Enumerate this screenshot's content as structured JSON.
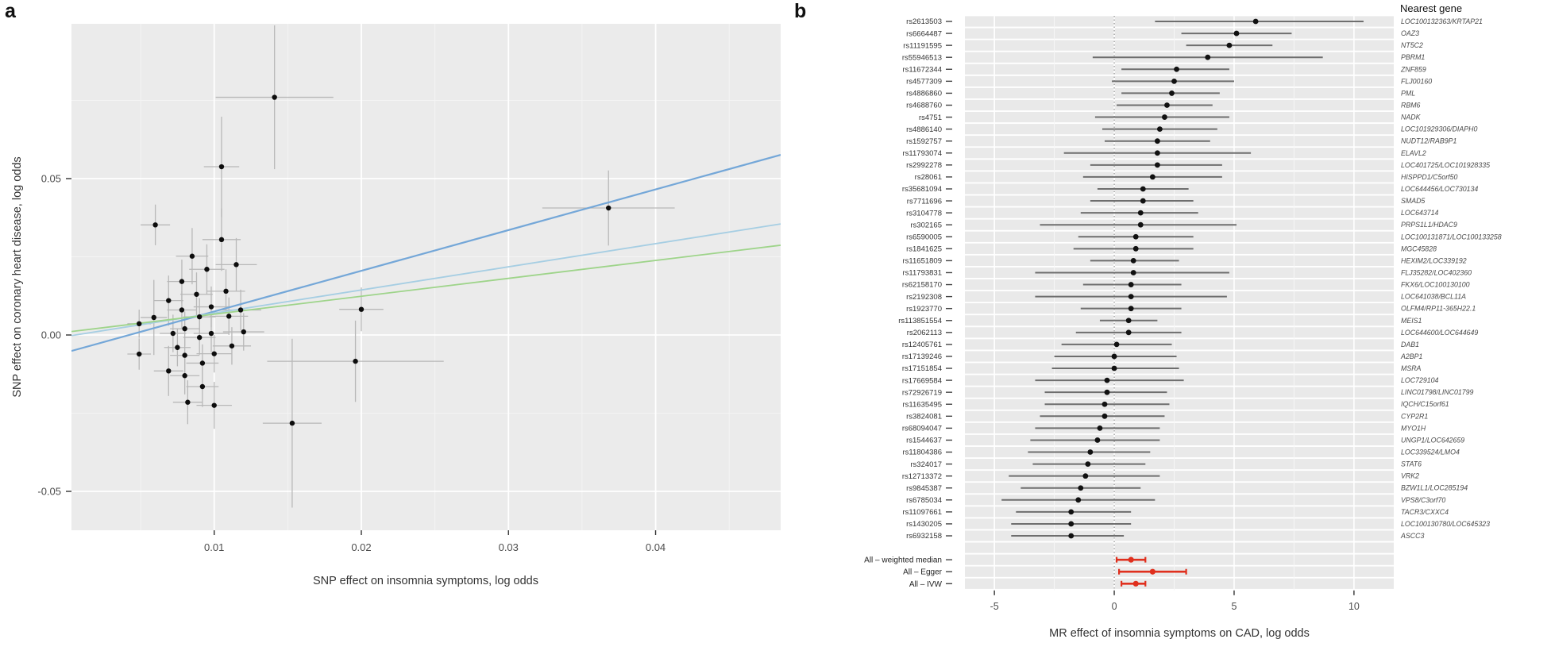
{
  "chart_data": [
    {
      "id": "panel_a",
      "type": "scatter",
      "panel_label": "a",
      "xlabel": "SNP effect on insomnia symptoms, log odds",
      "ylabel": "SNP effect on coronary heart disease, log odds",
      "x_ticks": [
        0.01,
        0.02,
        0.03,
        0.04
      ],
      "x_tick_labels": [
        "0.01",
        "0.02",
        "0.03",
        "0.04"
      ],
      "x_minor_ticks": [
        0.005,
        0.015,
        0.025,
        0.035,
        0.045
      ],
      "y_ticks": [
        0.05,
        0.0,
        -0.05
      ],
      "y_tick_labels": [
        "0.05",
        "0.00",
        "-0.05"
      ],
      "y_minor_ticks": [
        0.075,
        0.025,
        -0.025
      ],
      "xlim": [
        0.0003,
        0.0485
      ],
      "ylim": [
        -0.0624,
        0.0995
      ],
      "grid": true,
      "background": "#ebebeb",
      "point_color": "#0d0d0d",
      "errorbar_color": "#b8b8b8",
      "points": [
        [
          0.0049,
          0.0036,
          0.0008,
          0.0045
        ],
        [
          0.0049,
          -0.0061,
          0.0008,
          0.005
        ],
        [
          0.0059,
          0.0056,
          0.0009,
          0.012
        ],
        [
          0.006,
          0.0352,
          0.001,
          0.0065
        ],
        [
          0.0069,
          0.011,
          0.001,
          0.008
        ],
        [
          0.0069,
          -0.0115,
          0.001,
          0.008
        ],
        [
          0.0072,
          0.0005,
          0.0009,
          0.006
        ],
        [
          0.0075,
          -0.004,
          0.0009,
          0.006
        ],
        [
          0.0078,
          0.0171,
          0.001,
          0.007
        ],
        [
          0.0078,
          0.008,
          0.001,
          0.006
        ],
        [
          0.008,
          0.002,
          0.001,
          0.0055
        ],
        [
          0.008,
          -0.0065,
          0.001,
          0.0055
        ],
        [
          0.008,
          -0.013,
          0.001,
          0.006
        ],
        [
          0.0082,
          -0.0215,
          0.001,
          0.007
        ],
        [
          0.0085,
          0.0252,
          0.0011,
          0.009
        ],
        [
          0.0088,
          0.013,
          0.0011,
          0.007
        ],
        [
          0.009,
          0.0058,
          0.0011,
          0.006
        ],
        [
          0.009,
          -0.0008,
          0.0011,
          0.0055
        ],
        [
          0.0092,
          -0.009,
          0.0011,
          0.006
        ],
        [
          0.0092,
          -0.0165,
          0.0011,
          0.0065
        ],
        [
          0.0095,
          0.021,
          0.0012,
          0.008
        ],
        [
          0.0098,
          0.009,
          0.0012,
          0.0065
        ],
        [
          0.0098,
          0.0005,
          0.0012,
          0.006
        ],
        [
          0.01,
          -0.006,
          0.0012,
          0.006
        ],
        [
          0.01,
          -0.0225,
          0.0012,
          0.0075
        ],
        [
          0.0105,
          0.0538,
          0.0012,
          0.016
        ],
        [
          0.0105,
          0.0305,
          0.0013,
          0.01
        ],
        [
          0.0108,
          0.014,
          0.0013,
          0.007
        ],
        [
          0.011,
          0.006,
          0.0013,
          0.006
        ],
        [
          0.0112,
          -0.0035,
          0.0013,
          0.006
        ],
        [
          0.0115,
          0.0225,
          0.0014,
          0.0085
        ],
        [
          0.0118,
          0.008,
          0.0014,
          0.0065
        ],
        [
          0.012,
          0.001,
          0.0014,
          0.006
        ],
        [
          0.0141,
          0.076,
          0.004,
          0.023
        ],
        [
          0.0153,
          -0.0282,
          0.002,
          0.027
        ],
        [
          0.0196,
          -0.0084,
          0.006,
          0.013
        ],
        [
          0.02,
          0.0082,
          0.0015,
          0.007
        ],
        [
          0.0368,
          0.0406,
          0.0045,
          0.012
        ]
      ],
      "lines": [
        {
          "name": "fit-line-1",
          "color": "#74a7d8",
          "width": 2.2,
          "x0": 0.0003,
          "y0": -0.0051,
          "x1": 0.0485,
          "y1": 0.0576
        },
        {
          "name": "fit-line-2",
          "color": "#a6cee3",
          "width": 1.8,
          "x0": 0.0003,
          "y0": -0.0002,
          "x1": 0.0485,
          "y1": 0.0355
        },
        {
          "name": "fit-line-3",
          "color": "#9ed48a",
          "width": 1.8,
          "x0": 0.0003,
          "y0": 0.0011,
          "x1": 0.0485,
          "y1": 0.0287
        }
      ]
    },
    {
      "id": "panel_b",
      "type": "forest",
      "panel_label": "b",
      "right_header": "Nearest gene",
      "xlabel": "MR effect of insomnia symptoms on CAD, log odds",
      "x_ticks": [
        -5,
        0,
        5,
        10
      ],
      "x_tick_labels": [
        "-5",
        "0",
        "5",
        "10"
      ],
      "x_minor_ticks": [
        -2.5,
        2.5,
        7.5
      ],
      "xlim": [
        -6.23,
        11.66
      ],
      "zero_line": 0,
      "band_color": "#e9e9e9",
      "bar_color": "#6e6e6e",
      "dot_color": "#111111",
      "summary_color": "#e0301e",
      "rows": [
        {
          "snp": "rs2613503",
          "gene": "LOC100132363/KRTAP21",
          "est": 5.9,
          "lo": 1.7,
          "hi": 10.4
        },
        {
          "snp": "rs6664487",
          "gene": "OAZ3",
          "est": 5.1,
          "lo": 2.8,
          "hi": 7.4
        },
        {
          "snp": "rs11191595",
          "gene": "NT5C2",
          "est": 4.8,
          "lo": 3.0,
          "hi": 6.6
        },
        {
          "snp": "rs55946513",
          "gene": "PBRM1",
          "est": 3.9,
          "lo": -0.9,
          "hi": 8.7
        },
        {
          "snp": "rs11672344",
          "gene": "ZNF859",
          "est": 2.6,
          "lo": 0.3,
          "hi": 4.8
        },
        {
          "snp": "rs4577309",
          "gene": "FLJ00160",
          "est": 2.5,
          "lo": -0.1,
          "hi": 5.0
        },
        {
          "snp": "rs4886860",
          "gene": "PML",
          "est": 2.4,
          "lo": 0.3,
          "hi": 4.4
        },
        {
          "snp": "rs4688760",
          "gene": "RBM6",
          "est": 2.2,
          "lo": 0.1,
          "hi": 4.1
        },
        {
          "snp": "rs4751",
          "gene": "NADK",
          "est": 2.1,
          "lo": -0.8,
          "hi": 4.8
        },
        {
          "snp": "rs4886140",
          "gene": "LOC101929306/DIAPH0",
          "est": 1.9,
          "lo": -0.5,
          "hi": 4.3
        },
        {
          "snp": "rs1592757",
          "gene": "NUDT12/RAB9P1",
          "est": 1.8,
          "lo": -0.4,
          "hi": 4.0
        },
        {
          "snp": "rs11793074",
          "gene": "ELAVL2",
          "est": 1.8,
          "lo": -2.1,
          "hi": 5.7
        },
        {
          "snp": "rs2992278",
          "gene": "LOC401725/LOC101928335",
          "est": 1.8,
          "lo": -1.0,
          "hi": 4.5
        },
        {
          "snp": "rs28061",
          "gene": "HISPPD1/C5orf50",
          "est": 1.6,
          "lo": -1.3,
          "hi": 4.5
        },
        {
          "snp": "rs35681094",
          "gene": "LOC644456/LOC730134",
          "est": 1.2,
          "lo": -0.7,
          "hi": 3.1
        },
        {
          "snp": "rs7711696",
          "gene": "SMAD5",
          "est": 1.2,
          "lo": -1.0,
          "hi": 3.3
        },
        {
          "snp": "rs3104778",
          "gene": "LOC643714",
          "est": 1.1,
          "lo": -1.4,
          "hi": 3.5
        },
        {
          "snp": "rs302165",
          "gene": "PRPS1L1/HDAC9",
          "est": 1.1,
          "lo": -3.1,
          "hi": 5.1
        },
        {
          "snp": "rs6590005",
          "gene": "LOC100131871/LOC100133258",
          "est": 0.9,
          "lo": -1.5,
          "hi": 3.3
        },
        {
          "snp": "rs1841625",
          "gene": "MGC45828",
          "est": 0.9,
          "lo": -1.7,
          "hi": 3.3
        },
        {
          "snp": "rs11651809",
          "gene": "HEXIM2/LOC339192",
          "est": 0.8,
          "lo": -1.0,
          "hi": 2.7
        },
        {
          "snp": "rs11793831",
          "gene": "FLJ35282/LOC402360",
          "est": 0.8,
          "lo": -3.3,
          "hi": 4.8
        },
        {
          "snp": "rs62158170",
          "gene": "FKX6/LOC100130100",
          "est": 0.7,
          "lo": -1.3,
          "hi": 2.8
        },
        {
          "snp": "rs2192308",
          "gene": "LOC641038/BCL11A",
          "est": 0.7,
          "lo": -3.3,
          "hi": 4.7
        },
        {
          "snp": "rs1923770",
          "gene": "OLFM4/RP11-365H22.1",
          "est": 0.7,
          "lo": -1.4,
          "hi": 2.8
        },
        {
          "snp": "rs113851554",
          "gene": "MEIS1",
          "est": 0.6,
          "lo": -0.6,
          "hi": 1.8
        },
        {
          "snp": "rs2062113",
          "gene": "LOC644600/LOC644649",
          "est": 0.6,
          "lo": -1.6,
          "hi": 2.8
        },
        {
          "snp": "rs12405761",
          "gene": "DAB1",
          "est": 0.1,
          "lo": -2.2,
          "hi": 2.4
        },
        {
          "snp": "rs17139246",
          "gene": "A2BP1",
          "est": 0.0,
          "lo": -2.5,
          "hi": 2.6
        },
        {
          "snp": "rs17151854",
          "gene": "MSRA",
          "est": 0.0,
          "lo": -2.6,
          "hi": 2.7
        },
        {
          "snp": "rs17669584",
          "gene": "LOC729104",
          "est": -0.3,
          "lo": -3.3,
          "hi": 2.9
        },
        {
          "snp": "rs72926719",
          "gene": "LINC01798/LINC01799",
          "est": -0.3,
          "lo": -2.9,
          "hi": 2.2
        },
        {
          "snp": "rs11635495",
          "gene": "IQCH/C15orf61",
          "est": -0.4,
          "lo": -2.9,
          "hi": 2.3
        },
        {
          "snp": "rs3824081",
          "gene": "CYP2R1",
          "est": -0.4,
          "lo": -3.1,
          "hi": 2.1
        },
        {
          "snp": "rs68094047",
          "gene": "MYO1H",
          "est": -0.6,
          "lo": -3.3,
          "hi": 1.9
        },
        {
          "snp": "rs1544637",
          "gene": "UNGP1/LOC642659",
          "est": -0.7,
          "lo": -3.5,
          "hi": 1.9
        },
        {
          "snp": "rs11804386",
          "gene": "LOC339524/LMO4",
          "est": -1.0,
          "lo": -3.6,
          "hi": 1.5
        },
        {
          "snp": "rs324017",
          "gene": "STAT6",
          "est": -1.1,
          "lo": -3.4,
          "hi": 1.3
        },
        {
          "snp": "rs12713372",
          "gene": "VRK2",
          "est": -1.2,
          "lo": -4.4,
          "hi": 1.9
        },
        {
          "snp": "rs9845387",
          "gene": "BZW1L1/LOC285194",
          "est": -1.4,
          "lo": -3.9,
          "hi": 1.1
        },
        {
          "snp": "rs6785034",
          "gene": "VPS8/C3orf70",
          "est": -1.5,
          "lo": -4.7,
          "hi": 1.7
        },
        {
          "snp": "rs11097661",
          "gene": "TACR3/CXXC4",
          "est": -1.8,
          "lo": -4.1,
          "hi": 0.7
        },
        {
          "snp": "rs1430205",
          "gene": "LOC100130780/LOC645323",
          "est": -1.8,
          "lo": -4.3,
          "hi": 0.7
        },
        {
          "snp": "rs6932158",
          "gene": "ASCC3",
          "est": -1.8,
          "lo": -4.3,
          "hi": 0.4
        }
      ],
      "summary_rows": [
        {
          "label": "All – weighted median",
          "est": 0.7,
          "lo": 0.1,
          "hi": 1.3
        },
        {
          "label": "All – Egger",
          "est": 1.6,
          "lo": 0.2,
          "hi": 3.0
        },
        {
          "label": "All – IVW",
          "est": 0.9,
          "lo": 0.3,
          "hi": 1.3
        }
      ]
    }
  ]
}
